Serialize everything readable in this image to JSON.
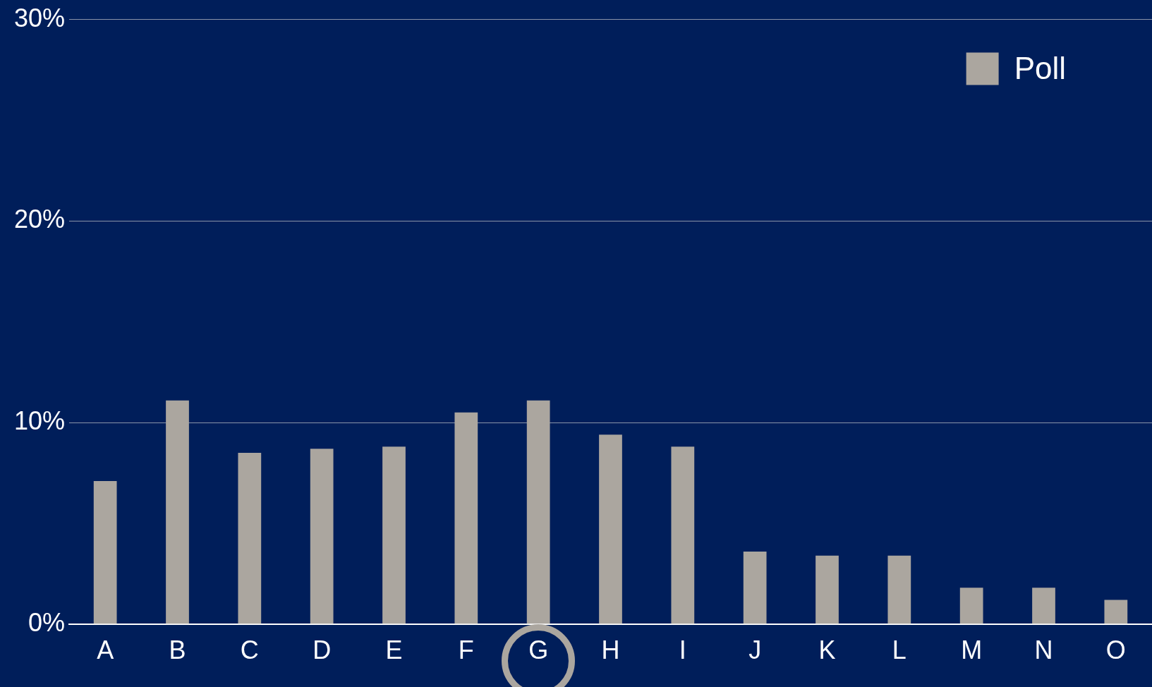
{
  "chart_data": {
    "type": "bar",
    "categories": [
      "A",
      "B",
      "C",
      "D",
      "E",
      "F",
      "G",
      "H",
      "I",
      "J",
      "K",
      "L",
      "M",
      "N",
      "O"
    ],
    "series": [
      {
        "name": "Poll",
        "color": "#aba69f",
        "values": [
          7.1,
          11.1,
          8.5,
          8.7,
          8.8,
          10.5,
          11.1,
          9.4,
          8.8,
          3.6,
          3.4,
          3.4,
          1.8,
          1.8,
          1.2
        ]
      }
    ],
    "ylim": [
      0,
      30
    ],
    "yticks": [
      {
        "value": 0,
        "label": "0%"
      },
      {
        "value": 10,
        "label": "10%"
      },
      {
        "value": 20,
        "label": "20%"
      },
      {
        "value": 30,
        "label": "30%"
      }
    ],
    "grid": "y",
    "legend": "top right"
  }
}
